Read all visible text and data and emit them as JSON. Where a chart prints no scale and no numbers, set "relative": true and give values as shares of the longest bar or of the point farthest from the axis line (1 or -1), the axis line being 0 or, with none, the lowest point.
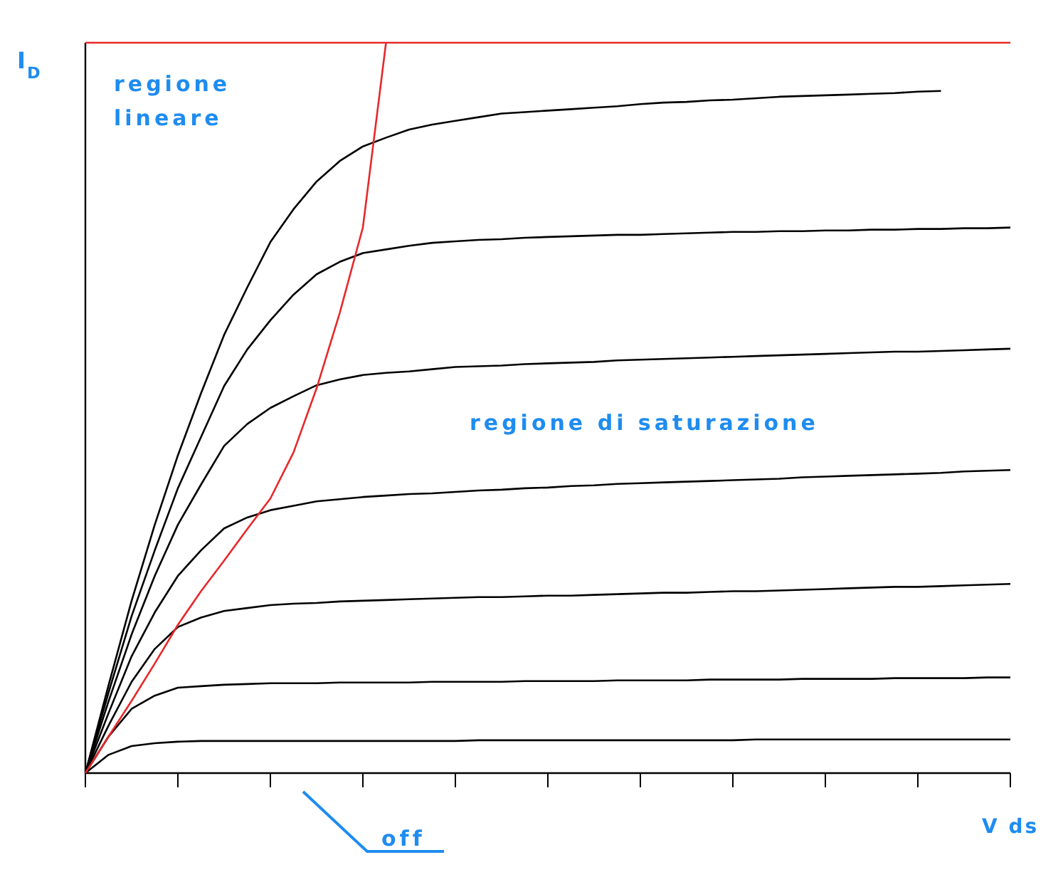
{
  "chart_data": {
    "type": "line",
    "relative": true,
    "xlabel": "V ds",
    "ylabel": "I$_{D}$",
    "categories": [
      null,
      null,
      null,
      null,
      null,
      null,
      null,
      null,
      null,
      null,
      null,
      null,
      null,
      null,
      null,
      null,
      null,
      null,
      null,
      null,
      null,
      null,
      null,
      null,
      null,
      null,
      null,
      null,
      null,
      null,
      null,
      null,
      null,
      null,
      null,
      null,
      null,
      null,
      null,
      null,
      null
    ],
    "marker": "none",
    "line_style": "solid",
    "annotations": [
      "regione lineare",
      "regione di saturazione",
      "off"
    ],
    "series": [
      {
        "color": "#000000",
        "values": [
          0,
          0.12,
          0.236,
          0.34,
          0.435,
          0.52,
          0.6,
          0.665,
          0.727,
          0.772,
          0.81,
          0.838,
          0.858,
          0.87,
          0.881,
          0.888,
          0.893,
          0.898,
          0.903,
          0.905,
          0.907,
          0.909,
          0.911,
          0.913,
          0.916,
          0.918,
          0.919,
          0.921,
          0.922,
          0.924,
          0.926,
          0.927,
          0.928,
          0.929,
          0.93,
          0.931,
          0.933,
          0.934,
          null,
          null,
          null
        ]
      },
      {
        "color": "#000000",
        "values": [
          0,
          0.11,
          0.215,
          0.305,
          0.39,
          0.46,
          0.53,
          0.58,
          0.62,
          0.655,
          0.683,
          0.7,
          0.712,
          0.717,
          0.722,
          0.726,
          0.728,
          0.73,
          0.731,
          0.733,
          0.734,
          0.735,
          0.736,
          0.737,
          0.737,
          0.738,
          0.739,
          0.74,
          0.741,
          0.741,
          0.742,
          0.742,
          0.743,
          0.743,
          0.744,
          0.744,
          0.745,
          0.745,
          0.746,
          0.746,
          0.747
        ]
      },
      {
        "color": "#000000",
        "values": [
          0,
          0.098,
          0.19,
          0.27,
          0.34,
          0.395,
          0.448,
          0.478,
          0.5,
          0.516,
          0.531,
          0.539,
          0.545,
          0.548,
          0.55,
          0.553,
          0.556,
          0.557,
          0.558,
          0.56,
          0.561,
          0.562,
          0.563,
          0.565,
          0.566,
          0.567,
          0.568,
          0.569,
          0.57,
          0.571,
          0.572,
          0.573,
          0.574,
          0.575,
          0.576,
          0.577,
          0.577,
          0.578,
          0.579,
          0.58,
          0.581
        ]
      },
      {
        "color": "#000000",
        "values": [
          0,
          0.082,
          0.16,
          0.22,
          0.27,
          0.305,
          0.335,
          0.35,
          0.36,
          0.366,
          0.372,
          0.375,
          0.378,
          0.38,
          0.382,
          0.383,
          0.385,
          0.387,
          0.388,
          0.39,
          0.391,
          0.393,
          0.394,
          0.396,
          0.397,
          0.398,
          0.399,
          0.4,
          0.401,
          0.402,
          0.403,
          0.405,
          0.406,
          0.407,
          0.408,
          0.409,
          0.41,
          0.411,
          0.413,
          0.414,
          0.415
        ]
      },
      {
        "color": "#000000",
        "values": [
          0,
          0.065,
          0.125,
          0.17,
          0.2,
          0.213,
          0.222,
          0.226,
          0.23,
          0.232,
          0.233,
          0.235,
          0.236,
          0.237,
          0.238,
          0.239,
          0.24,
          0.241,
          0.241,
          0.242,
          0.243,
          0.243,
          0.244,
          0.245,
          0.246,
          0.247,
          0.247,
          0.248,
          0.249,
          0.249,
          0.25,
          0.251,
          0.252,
          0.253,
          0.254,
          0.255,
          0.255,
          0.256,
          0.257,
          0.258,
          0.259
        ]
      },
      {
        "color": "#000000",
        "values": [
          0,
          0.05,
          0.088,
          0.106,
          0.117,
          0.119,
          0.121,
          0.122,
          0.123,
          0.123,
          0.123,
          0.124,
          0.124,
          0.124,
          0.124,
          0.125,
          0.125,
          0.125,
          0.125,
          0.126,
          0.126,
          0.126,
          0.126,
          0.127,
          0.127,
          0.127,
          0.127,
          0.128,
          0.128,
          0.128,
          0.128,
          0.129,
          0.129,
          0.129,
          0.129,
          0.13,
          0.13,
          0.13,
          0.13,
          0.131,
          0.131
        ]
      },
      {
        "color": "#000000",
        "values": [
          0,
          0.025,
          0.037,
          0.041,
          0.043,
          0.044,
          0.044,
          0.044,
          0.044,
          0.044,
          0.044,
          0.044,
          0.044,
          0.044,
          0.044,
          0.044,
          0.044,
          0.045,
          0.045,
          0.045,
          0.045,
          0.045,
          0.045,
          0.045,
          0.045,
          0.045,
          0.045,
          0.045,
          0.045,
          0.046,
          0.046,
          0.046,
          0.046,
          0.046,
          0.046,
          0.046,
          0.046,
          0.046,
          0.046,
          0.046,
          0.046
        ]
      },
      {
        "color": "#e8282a",
        "values": [
          0,
          0.05,
          0.099,
          0.15,
          0.203,
          0.249,
          0.291,
          0.334,
          0.376,
          0.439,
          0.527,
          0.63,
          0.747,
          1,
          null,
          null,
          null,
          null,
          null,
          null,
          null,
          null,
          null,
          null,
          null,
          null,
          null,
          null,
          null,
          null,
          null,
          null,
          null,
          null,
          null,
          null,
          null,
          null,
          null,
          null,
          null
        ]
      },
      {
        "color": "#e8282a",
        "values": [
          1,
          1,
          1,
          1,
          1,
          1,
          1,
          1,
          1,
          1,
          1,
          1,
          1,
          1,
          1,
          1,
          1,
          1,
          1,
          1,
          1,
          1,
          1,
          1,
          1,
          1,
          1,
          1,
          1,
          1,
          1,
          1,
          1,
          1,
          1,
          1,
          1,
          1,
          1,
          1,
          1
        ]
      }
    ]
  }
}
